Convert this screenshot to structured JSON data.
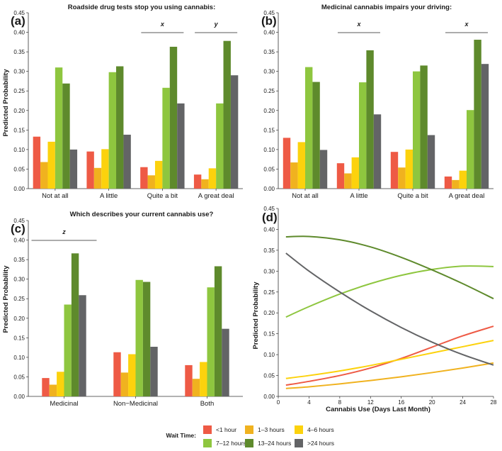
{
  "chart_data": [
    {
      "panel": "(a)",
      "type": "bar",
      "title": "Roadside drug tests stop you using cannabis:",
      "ylabel": "Predicted Probability",
      "ylim": [
        0,
        0.45
      ],
      "yticks": [
        "0.00",
        "0.05",
        "0.10",
        "0.15",
        "0.20",
        "0.25",
        "0.30",
        "0.35",
        "0.40",
        "0.45"
      ],
      "categories": [
        "Not at all",
        "A little",
        "Quite a bit",
        "A great deal"
      ],
      "series": [
        {
          "name": "<1 hour",
          "values": [
            0.133,
            0.095,
            0.055,
            0.036
          ]
        },
        {
          "name": "1–3 hours",
          "values": [
            0.068,
            0.053,
            0.034,
            0.024
          ]
        },
        {
          "name": "4–6 hours",
          "values": [
            0.12,
            0.101,
            0.071,
            0.052
          ]
        },
        {
          "name": "7–12 hours",
          "values": [
            0.31,
            0.298,
            0.258,
            0.218
          ]
        },
        {
          "name": "13–24 hours",
          "values": [
            0.269,
            0.313,
            0.363,
            0.378
          ]
        },
        {
          "name": ">24 hours",
          "values": [
            0.1,
            0.138,
            0.218,
            0.29
          ]
        }
      ],
      "annotations": [
        {
          "label": "x",
          "category": "Quite a bit"
        },
        {
          "label": "y",
          "category": "A great deal"
        }
      ]
    },
    {
      "panel": "(b)",
      "type": "bar",
      "title": "Medicinal cannabis impairs your driving:",
      "ylabel": "",
      "ylim": [
        0,
        0.45
      ],
      "yticks": [
        "0.00",
        "0.05",
        "0.10",
        "0.15",
        "0.20",
        "0.25",
        "0.30",
        "0.35",
        "0.40",
        "0.45"
      ],
      "categories": [
        "Not at all",
        "A little",
        "Quite a bit",
        "A great deal"
      ],
      "series": [
        {
          "name": "<1 hour",
          "values": [
            0.13,
            0.065,
            0.094,
            0.031
          ]
        },
        {
          "name": "1–3 hours",
          "values": [
            0.067,
            0.039,
            0.054,
            0.022
          ]
        },
        {
          "name": "4–6 hours",
          "values": [
            0.119,
            0.08,
            0.1,
            0.046
          ]
        },
        {
          "name": "7–12 hours",
          "values": [
            0.311,
            0.272,
            0.3,
            0.201
          ]
        },
        {
          "name": "13–24 hours",
          "values": [
            0.273,
            0.354,
            0.315,
            0.381
          ]
        },
        {
          "name": ">24 hours",
          "values": [
            0.099,
            0.19,
            0.137,
            0.319
          ]
        }
      ],
      "annotations": [
        {
          "label": "x",
          "category": "A little"
        },
        {
          "label": "x",
          "category": "A great deal"
        }
      ]
    },
    {
      "panel": "(c)",
      "type": "bar",
      "title": "Which describes your current cannabis use?",
      "ylabel": "Predicted Probability",
      "ylim": [
        0,
        0.45
      ],
      "yticks": [
        "0.00",
        "0.05",
        "0.10",
        "0.15",
        "0.20",
        "0.25",
        "0.30",
        "0.35",
        "0.40",
        "0.45"
      ],
      "categories": [
        "Medicinal",
        "Non−Medicinal",
        "Both"
      ],
      "series": [
        {
          "name": "<1 hour",
          "values": [
            0.047,
            0.113,
            0.08
          ]
        },
        {
          "name": "1–3 hours",
          "values": [
            0.03,
            0.061,
            0.045
          ]
        },
        {
          "name": "4–6 hours",
          "values": [
            0.063,
            0.108,
            0.088
          ]
        },
        {
          "name": "7–12 hours",
          "values": [
            0.235,
            0.298,
            0.279
          ]
        },
        {
          "name": "13–24 hours",
          "values": [
            0.366,
            0.293,
            0.333
          ]
        },
        {
          "name": ">24 hours",
          "values": [
            0.259,
            0.127,
            0.173
          ]
        }
      ],
      "annotations": [
        {
          "label": "z",
          "category": "Medicinal"
        }
      ]
    },
    {
      "panel": "(d)",
      "type": "line",
      "title": "",
      "xlabel": "Cannabis Use (Days Last Month)",
      "ylabel": "Predicted Probability",
      "xlim": [
        0,
        28
      ],
      "ylim": [
        0,
        0.45
      ],
      "xticks": [
        "0",
        "4",
        "8",
        "12",
        "16",
        "20",
        "24",
        "28"
      ],
      "yticks": [
        "0.00",
        "0.05",
        "0.10",
        "0.15",
        "0.20",
        "0.25",
        "0.30",
        "0.35",
        "0.40",
        "0.45"
      ],
      "x": [
        1,
        4,
        8,
        12,
        16,
        20,
        24,
        28
      ],
      "series": [
        {
          "name": "<1 hour",
          "values": [
            0.027,
            0.036,
            0.05,
            0.068,
            0.091,
            0.118,
            0.145,
            0.168
          ]
        },
        {
          "name": "1–3 hours",
          "values": [
            0.019,
            0.023,
            0.03,
            0.038,
            0.047,
            0.057,
            0.068,
            0.08
          ]
        },
        {
          "name": "4–6 hours",
          "values": [
            0.043,
            0.05,
            0.061,
            0.074,
            0.089,
            0.104,
            0.119,
            0.134
          ]
        },
        {
          "name": "7–12 hours",
          "values": [
            0.19,
            0.215,
            0.245,
            0.27,
            0.29,
            0.304,
            0.312,
            0.311
          ]
        },
        {
          "name": "13–24 hours",
          "values": [
            0.382,
            0.383,
            0.375,
            0.358,
            0.333,
            0.303,
            0.27,
            0.234
          ]
        },
        {
          "name": ">24 hours",
          "values": [
            0.343,
            0.3,
            0.25,
            0.205,
            0.165,
            0.13,
            0.1,
            0.075
          ]
        }
      ]
    }
  ],
  "legend": {
    "title": "Wait Time:",
    "items": [
      {
        "label": "<1 hour",
        "color": "#ee5a45"
      },
      {
        "label": "1–3 hours",
        "color": "#f0b21f"
      },
      {
        "label": "4–6 hours",
        "color": "#fcd20d"
      },
      {
        "label": "7–12 hours",
        "color": "#8ec63f"
      },
      {
        "label": "13–24 hours",
        "color": "#5e8a2c"
      },
      {
        "label": ">24 hours",
        "color": "#636466"
      }
    ]
  }
}
